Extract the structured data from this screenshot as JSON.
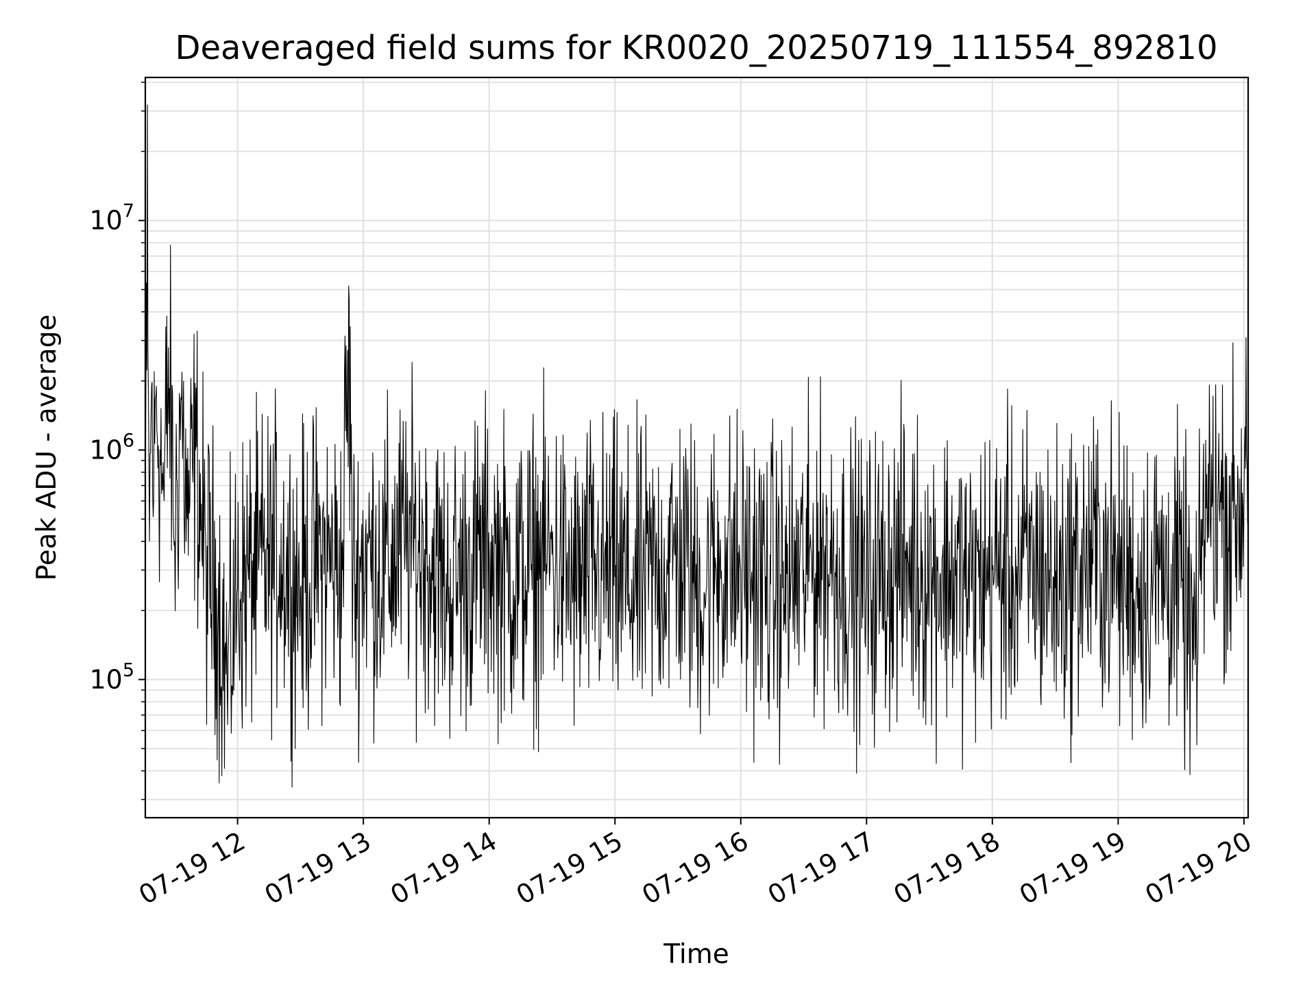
{
  "chart_data": {
    "type": "line",
    "title": "Deaveraged field sums for KR0020_20250719_111554_892810",
    "xlabel": "Time",
    "ylabel": "Peak ADU - average",
    "yscale": "log",
    "ylim": [
      25000,
      42000000
    ],
    "xlim": [
      "07-19 11:16",
      "07-19 20:02"
    ],
    "grid": true,
    "line_color": "#000000",
    "x_ticks": [
      "07-19 12",
      "07-19 13",
      "07-19 14",
      "07-19 15",
      "07-19 16",
      "07-19 17",
      "07-19 18",
      "07-19 19",
      "07-19 20"
    ],
    "y_ticks": [
      {
        "base": "10",
        "exp": "5",
        "value": 100000
      },
      {
        "base": "10",
        "exp": "6",
        "value": 1000000
      },
      {
        "base": "10",
        "exp": "7",
        "value": 10000000
      }
    ],
    "series": [
      {
        "x": [
          "07-19 11:16",
          "07-19 11:17",
          "07-19 11:18",
          "07-19 11:19",
          "07-19 11:20",
          "07-19 11:21",
          "07-19 11:23",
          "07-19 11:25",
          "07-19 11:27",
          "07-19 11:30",
          "07-19 11:33",
          "07-19 11:36",
          "07-19 11:40",
          "07-19 11:45",
          "07-19 11:50",
          "07-19 11:55",
          "07-19 12:00",
          "07-19 12:10",
          "07-19 12:20",
          "07-19 12:30",
          "07-19 12:40",
          "07-19 12:50",
          "07-19 12:53",
          "07-19 12:55",
          "07-19 13:00",
          "07-19 13:10",
          "07-19 13:20",
          "07-19 13:30",
          "07-19 13:40",
          "07-19 13:50",
          "07-19 14:00",
          "07-19 14:10",
          "07-19 14:20",
          "07-19 14:30",
          "07-19 14:40",
          "07-19 14:50",
          "07-19 15:00",
          "07-19 15:10",
          "07-19 15:20",
          "07-19 15:30",
          "07-19 15:40",
          "07-19 15:50",
          "07-19 16:00",
          "07-19 16:10",
          "07-19 16:20",
          "07-19 16:30",
          "07-19 16:40",
          "07-19 16:50",
          "07-19 17:00",
          "07-19 17:10",
          "07-19 17:20",
          "07-19 17:30",
          "07-19 17:40",
          "07-19 17:50",
          "07-19 18:00",
          "07-19 18:10",
          "07-19 18:20",
          "07-19 18:30",
          "07-19 18:40",
          "07-19 18:50",
          "07-19 19:00",
          "07-19 19:10",
          "07-19 19:20",
          "07-19 19:30",
          "07-19 19:38",
          "07-19 19:40",
          "07-19 19:45",
          "07-19 19:50",
          "07-19 19:55",
          "07-19 20:00",
          "07-19 20:01",
          "07-19 20:02"
        ],
        "y": [
          500000,
          32000000,
          400000,
          1900000,
          600000,
          1700000,
          1000000,
          600000,
          2800000,
          400000,
          1700000,
          500000,
          1000000,
          300000,
          250000,
          100000,
          250000,
          300000,
          350000,
          250000,
          350000,
          300000,
          5200000,
          250000,
          350000,
          300000,
          400000,
          350000,
          250000,
          300000,
          350000,
          280000,
          300000,
          350000,
          250000,
          300000,
          280000,
          250000,
          300000,
          350000,
          250000,
          320000,
          300000,
          280000,
          250000,
          300000,
          350000,
          280000,
          250000,
          300000,
          320000,
          280000,
          300000,
          250000,
          300000,
          280000,
          320000,
          250000,
          300000,
          350000,
          280000,
          250000,
          300000,
          250000,
          120000,
          500000,
          600000,
          550000,
          500000,
          600000,
          3100000,
          450000
        ]
      }
    ]
  }
}
